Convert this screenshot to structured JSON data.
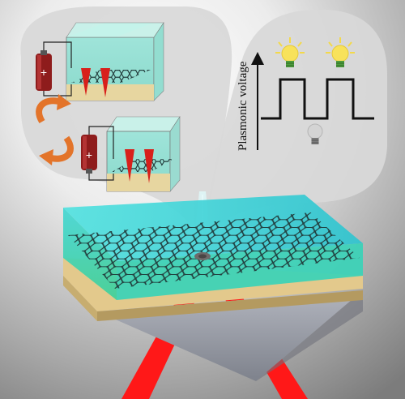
{
  "diagram": {
    "y_axis_label": "Plasmonic voltage",
    "signal_levels": [
      "high",
      "low",
      "high",
      "low"
    ],
    "bulb_states": [
      "on",
      "on",
      "off"
    ],
    "battery_terminal_symbol": "+",
    "colors": {
      "background_light": "#ffffff",
      "background_dark": "#7a7a7a",
      "bubble": "#d7d7d7",
      "water": "#3fd4d6",
      "graphene": "#1f3a3a",
      "substrate": "#e3c98c",
      "prism": "#9ea1ab",
      "laser": "#ff1a1a",
      "battery": "#8e1c1c",
      "cycle_arrow": "#e3742a",
      "bulb_on": "#f7e25c",
      "bulb_off": "#cfcfcf",
      "triangle_field": "#d8201b"
    }
  }
}
